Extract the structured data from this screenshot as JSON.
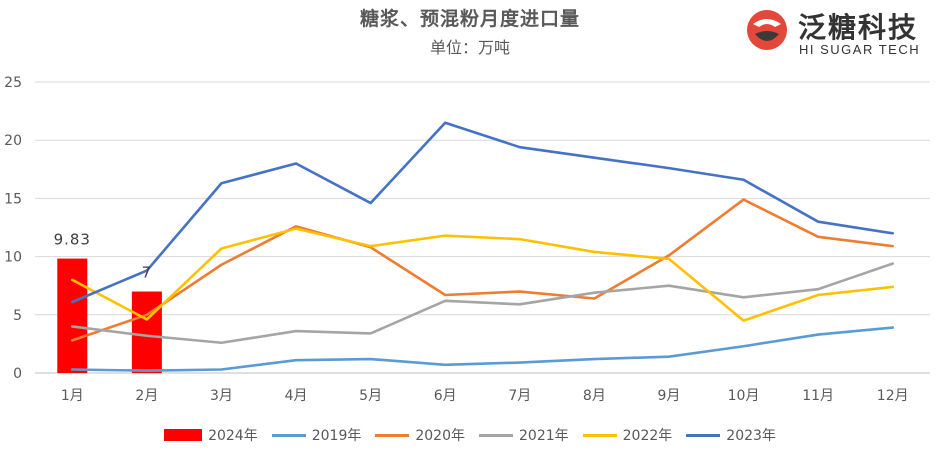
{
  "header": {
    "title": "糖浆、预混粉月度进口量",
    "subtitle": "单位：万吨"
  },
  "logo": {
    "name_cn": "泛糖科技",
    "name_en": "HI SUGAR TECH",
    "icon": "hi-sugar-logo-icon",
    "colors": {
      "red": "#e3483a",
      "dark": "#3a3a3a"
    }
  },
  "chart_data": {
    "type": "bar+line",
    "title": "糖浆、预混粉月度进口量",
    "subtitle": "单位：万吨",
    "categories": [
      "1月",
      "2月",
      "3月",
      "4月",
      "5月",
      "6月",
      "7月",
      "8月",
      "9月",
      "10月",
      "11月",
      "12月"
    ],
    "ylim": [
      0,
      25
    ],
    "yticks": [
      "0",
      "5",
      "10",
      "15",
      "20",
      "25"
    ],
    "grid": true,
    "legend_position": "bottom",
    "bars": {
      "name": "2024年",
      "color": "#ff0000",
      "values": [
        9.83,
        7
      ],
      "data_labels": [
        "9.83",
        "7"
      ]
    },
    "series": [
      {
        "name": "2019年",
        "color": "#5b9bd5",
        "values": [
          0.3,
          0.2,
          0.3,
          1.1,
          1.2,
          0.7,
          0.9,
          1.2,
          1.4,
          2.3,
          3.3,
          3.9
        ]
      },
      {
        "name": "2020年",
        "color": "#ed7d31",
        "values": [
          2.8,
          5.0,
          9.3,
          12.6,
          10.8,
          6.7,
          7.0,
          6.4,
          10.1,
          14.9,
          11.7,
          10.9
        ]
      },
      {
        "name": "2021年",
        "color": "#a5a5a5",
        "values": [
          4.0,
          3.2,
          2.6,
          3.6,
          3.4,
          6.2,
          5.9,
          6.9,
          7.5,
          6.5,
          7.2,
          9.4
        ]
      },
      {
        "name": "2022年",
        "color": "#ffc000",
        "values": [
          8.0,
          4.6,
          10.7,
          12.4,
          10.9,
          11.8,
          11.5,
          10.4,
          9.8,
          4.5,
          6.7,
          7.4
        ]
      },
      {
        "name": "2023年",
        "color": "#4472c4",
        "values": [
          6.1,
          8.8,
          16.3,
          18.0,
          14.6,
          21.5,
          19.4,
          18.5,
          17.6,
          16.6,
          13.0,
          12.0
        ]
      }
    ]
  }
}
